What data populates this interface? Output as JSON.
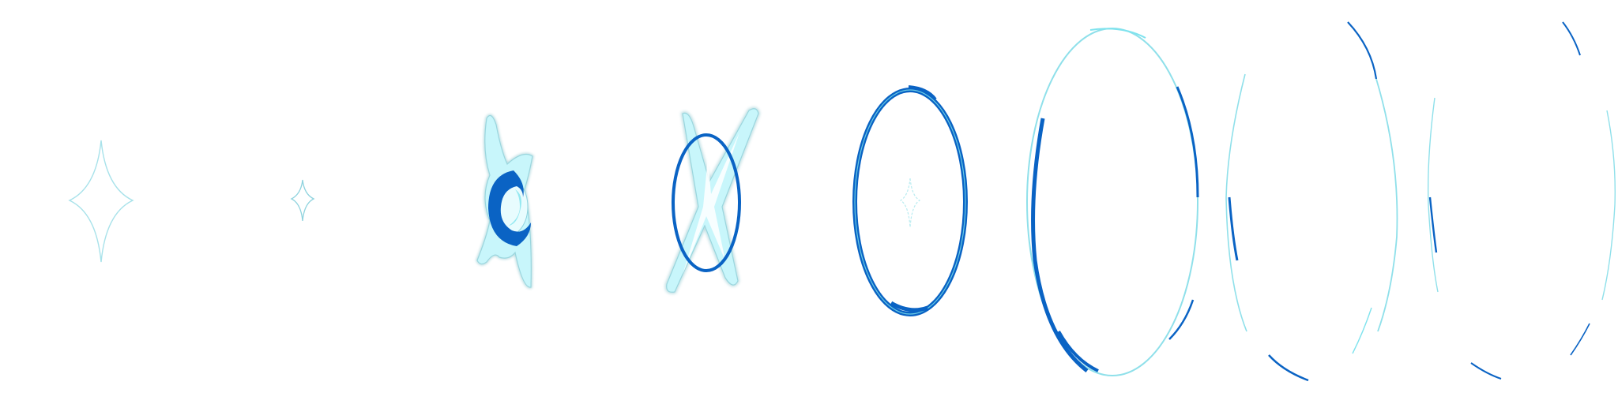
{
  "sprite_sheet": {
    "frame_count": 8,
    "palette": {
      "deep_blue": "#0a63c4",
      "cyan_light": "#c8f6fb",
      "cyan_mid": "#7fe3ee",
      "outline_glow": "#a8e2ea",
      "background": "#ffffff"
    },
    "frames": [
      {
        "index": 1,
        "icon": "sparkle-outline-large-icon"
      },
      {
        "index": 2,
        "icon": "sparkle-outline-small-icon"
      },
      {
        "index": 3,
        "icon": "crescent-swirl-burst-icon"
      },
      {
        "index": 4,
        "icon": "ring-cross-burst-icon"
      },
      {
        "index": 5,
        "icon": "blue-ring-icon"
      },
      {
        "index": 6,
        "icon": "expanding-ring-icon"
      },
      {
        "index": 7,
        "icon": "fading-ring-arcs-icon"
      },
      {
        "index": 8,
        "icon": "faint-ring-arcs-icon"
      }
    ]
  }
}
